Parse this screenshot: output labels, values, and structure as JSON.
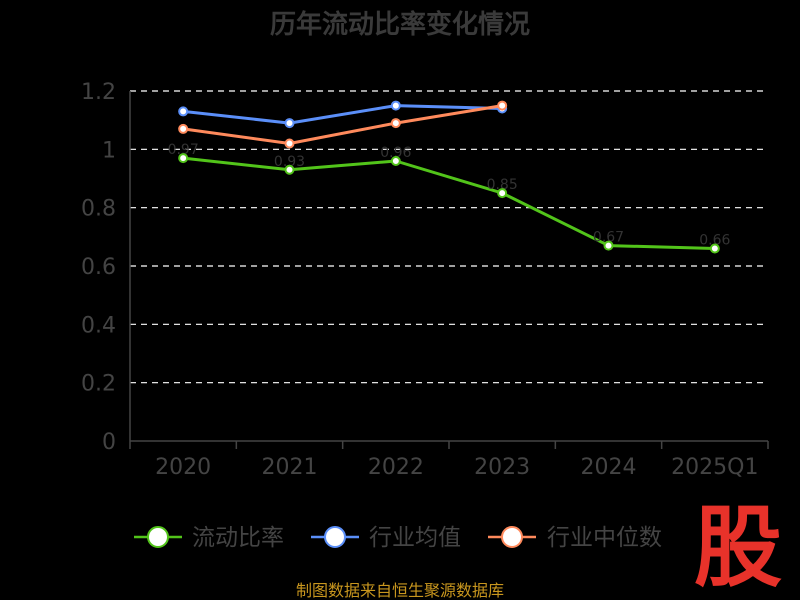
{
  "chart_data": {
    "type": "line",
    "title": "历年流动比率变化情况",
    "categories": [
      "2020",
      "2021",
      "2022",
      "2023",
      "2024",
      "2025Q1"
    ],
    "ylim": [
      0,
      1.2
    ],
    "yticks": [
      "0",
      "0.2",
      "0.4",
      "0.6",
      "0.8",
      "1",
      "1.2"
    ],
    "grid": true,
    "legend_position": "bottom",
    "series": [
      {
        "name": "流动比率",
        "color": "#52c41a",
        "values": [
          0.97,
          0.93,
          0.96,
          0.85,
          0.67,
          0.66
        ]
      },
      {
        "name": "行业均值",
        "color": "#5b8ff9",
        "values": [
          1.13,
          1.09,
          1.15,
          1.14,
          null,
          null
        ]
      },
      {
        "name": "行业中位数",
        "color": "#ff8a5c",
        "values": [
          1.07,
          1.02,
          1.09,
          1.15,
          null,
          null
        ]
      }
    ]
  },
  "source_text": "制图数据来自恒生聚源数据库",
  "watermark_text": "股"
}
